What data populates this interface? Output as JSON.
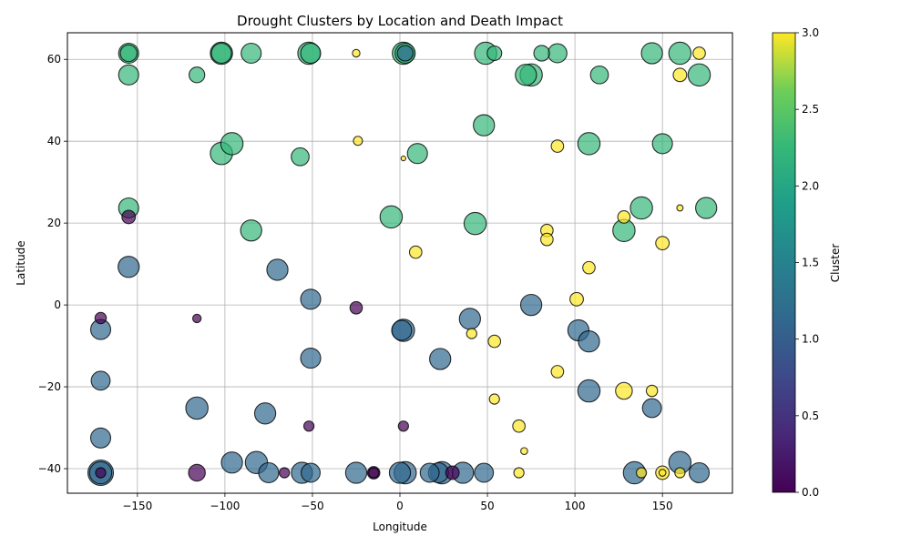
{
  "chart_data": {
    "type": "scatter",
    "title": "Drought Clusters by Location and Death Impact",
    "xlabel": "Longitude",
    "ylabel": "Latitude",
    "xlim": [
      -190,
      190
    ],
    "ylim": [
      -46,
      66.5
    ],
    "xticks": [
      -150,
      -100,
      -50,
      0,
      50,
      100,
      150
    ],
    "yticks": [
      -40,
      -20,
      0,
      20,
      40,
      60
    ],
    "grid": true,
    "colorbar": {
      "label": "Cluster",
      "min": 0,
      "max": 3,
      "ticks": [
        0.0,
        0.5,
        1.0,
        1.5,
        2.0,
        2.5,
        3.0
      ],
      "colormap": "viridis"
    },
    "cluster_colors": {
      "0": "#440154",
      "1": "#31688e",
      "2": "#35b779",
      "3": "#fde725"
    },
    "point_alpha": 0.7,
    "size_scale": "marker radius grows with death impact (relative 0-1)",
    "points": [
      {
        "lon": -171,
        "lat": -41,
        "cluster": 1,
        "size": 1.0
      },
      {
        "lon": -171,
        "lat": -41,
        "cluster": 1,
        "size": 0.85
      },
      {
        "lon": -171,
        "lat": -41,
        "cluster": 0,
        "size": 0.3
      },
      {
        "lon": -171,
        "lat": -32.5,
        "cluster": 1,
        "size": 0.75
      },
      {
        "lon": -171,
        "lat": -18.5,
        "cluster": 1,
        "size": 0.7
      },
      {
        "lon": -171,
        "lat": -6,
        "cluster": 1,
        "size": 0.75
      },
      {
        "lon": -171,
        "lat": -3.2,
        "cluster": 0,
        "size": 0.35
      },
      {
        "lon": -155,
        "lat": 9.3,
        "cluster": 1,
        "size": 0.8
      },
      {
        "lon": -155,
        "lat": 21.5,
        "cluster": 0,
        "size": 0.45
      },
      {
        "lon": -155,
        "lat": 23.7,
        "cluster": 2,
        "size": 0.75
      },
      {
        "lon": -155,
        "lat": 56.2,
        "cluster": 2,
        "size": 0.75
      },
      {
        "lon": -155,
        "lat": 61.5,
        "cluster": 2,
        "size": 0.75
      },
      {
        "lon": -155,
        "lat": 61.5,
        "cluster": 2,
        "size": 0.6
      },
      {
        "lon": -116,
        "lat": 56.2,
        "cluster": 2,
        "size": 0.55
      },
      {
        "lon": -116,
        "lat": -3.3,
        "cluster": 0,
        "size": 0.22
      },
      {
        "lon": -116,
        "lat": -25.2,
        "cluster": 1,
        "size": 0.85
      },
      {
        "lon": -116,
        "lat": -41,
        "cluster": 0,
        "size": 0.6
      },
      {
        "lon": -102,
        "lat": 61.5,
        "cluster": 2,
        "size": 0.85
      },
      {
        "lon": -102,
        "lat": 61.5,
        "cluster": 2,
        "size": 0.75
      },
      {
        "lon": -102,
        "lat": 37,
        "cluster": 2,
        "size": 0.85
      },
      {
        "lon": -96,
        "lat": 39.4,
        "cluster": 2,
        "size": 0.85
      },
      {
        "lon": -96,
        "lat": -38.5,
        "cluster": 1,
        "size": 0.8
      },
      {
        "lon": -85,
        "lat": 61.5,
        "cluster": 2,
        "size": 0.75
      },
      {
        "lon": -85,
        "lat": 18.2,
        "cluster": 2,
        "size": 0.8
      },
      {
        "lon": -82,
        "lat": -38.5,
        "cluster": 1,
        "size": 0.85
      },
      {
        "lon": -77,
        "lat": -26.5,
        "cluster": 1,
        "size": 0.8
      },
      {
        "lon": -75,
        "lat": -41,
        "cluster": 1,
        "size": 0.75
      },
      {
        "lon": -70,
        "lat": 8.6,
        "cluster": 1,
        "size": 0.8
      },
      {
        "lon": -66,
        "lat": -41,
        "cluster": 0,
        "size": 0.3
      },
      {
        "lon": -57,
        "lat": 36.2,
        "cluster": 2,
        "size": 0.65
      },
      {
        "lon": -56,
        "lat": -41,
        "cluster": 1,
        "size": 0.8
      },
      {
        "lon": -52,
        "lat": 61.5,
        "cluster": 2,
        "size": 0.85
      },
      {
        "lon": -51,
        "lat": 61.5,
        "cluster": 2,
        "size": 0.75
      },
      {
        "lon": -51,
        "lat": 1.4,
        "cluster": 1,
        "size": 0.75
      },
      {
        "lon": -51,
        "lat": -13,
        "cluster": 1,
        "size": 0.75
      },
      {
        "lon": -52,
        "lat": -29.6,
        "cluster": 0,
        "size": 0.3
      },
      {
        "lon": -51,
        "lat": -41,
        "cluster": 1,
        "size": 0.7
      },
      {
        "lon": -25,
        "lat": 61.5,
        "cluster": 3,
        "size": 0.18
      },
      {
        "lon": -24,
        "lat": 40.1,
        "cluster": 3,
        "size": 0.25
      },
      {
        "lon": -25,
        "lat": -0.7,
        "cluster": 0,
        "size": 0.4
      },
      {
        "lon": -25,
        "lat": -41,
        "cluster": 1,
        "size": 0.8
      },
      {
        "lon": -15,
        "lat": -41,
        "cluster": 0,
        "size": 0.4
      },
      {
        "lon": -15,
        "lat": -41,
        "cluster": 0,
        "size": 0.3
      },
      {
        "lon": -5,
        "lat": 21.5,
        "cluster": 2,
        "size": 0.85
      },
      {
        "lon": 1,
        "lat": -6.2,
        "cluster": 1,
        "size": 0.75
      },
      {
        "lon": 2,
        "lat": -6.2,
        "cluster": 1,
        "size": 0.85
      },
      {
        "lon": 0,
        "lat": -41,
        "cluster": 1,
        "size": 0.8
      },
      {
        "lon": 2,
        "lat": 61.5,
        "cluster": 2,
        "size": 0.85
      },
      {
        "lon": 3,
        "lat": 61.5,
        "cluster": 2,
        "size": 0.75
      },
      {
        "lon": 3,
        "lat": 61.5,
        "cluster": 1,
        "size": 0.55
      },
      {
        "lon": 2,
        "lat": 35.8,
        "cluster": 3,
        "size": 0.05
      },
      {
        "lon": 2,
        "lat": -29.6,
        "cluster": 0,
        "size": 0.3
      },
      {
        "lon": 3,
        "lat": -41,
        "cluster": 1,
        "size": 0.85
      },
      {
        "lon": 9,
        "lat": 12.9,
        "cluster": 3,
        "size": 0.4
      },
      {
        "lon": 10,
        "lat": 37,
        "cluster": 2,
        "size": 0.75
      },
      {
        "lon": 17,
        "lat": -41,
        "cluster": 1,
        "size": 0.7
      },
      {
        "lon": 23,
        "lat": -13.2,
        "cluster": 1,
        "size": 0.8
      },
      {
        "lon": 22,
        "lat": -41,
        "cluster": 1,
        "size": 0.75
      },
      {
        "lon": 24,
        "lat": -41,
        "cluster": 1,
        "size": 0.85
      },
      {
        "lon": 30,
        "lat": -41,
        "cluster": 0,
        "size": 0.45
      },
      {
        "lon": 36,
        "lat": -41,
        "cluster": 1,
        "size": 0.8
      },
      {
        "lon": 40,
        "lat": -3.4,
        "cluster": 1,
        "size": 0.8
      },
      {
        "lon": 41,
        "lat": -7,
        "cluster": 3,
        "size": 0.3
      },
      {
        "lon": 43,
        "lat": 19.9,
        "cluster": 2,
        "size": 0.85
      },
      {
        "lon": 48,
        "lat": 43.9,
        "cluster": 2,
        "size": 0.8
      },
      {
        "lon": 49,
        "lat": 61.5,
        "cluster": 2,
        "size": 0.85
      },
      {
        "lon": 54,
        "lat": 61.5,
        "cluster": 2,
        "size": 0.5
      },
      {
        "lon": 48,
        "lat": -41,
        "cluster": 1,
        "size": 0.7
      },
      {
        "lon": 54,
        "lat": -8.9,
        "cluster": 3,
        "size": 0.4
      },
      {
        "lon": 54,
        "lat": -23,
        "cluster": 3,
        "size": 0.3
      },
      {
        "lon": 68,
        "lat": -29.6,
        "cluster": 3,
        "size": 0.4
      },
      {
        "lon": 68,
        "lat": -41,
        "cluster": 3,
        "size": 0.3
      },
      {
        "lon": 71,
        "lat": -35.7,
        "cluster": 3,
        "size": 0.15
      },
      {
        "lon": 72,
        "lat": 56.2,
        "cluster": 2,
        "size": 0.8
      },
      {
        "lon": 75,
        "lat": 56.2,
        "cluster": 2,
        "size": 0.85
      },
      {
        "lon": 75,
        "lat": 0,
        "cluster": 1,
        "size": 0.8
      },
      {
        "lon": 81,
        "lat": 61.5,
        "cluster": 2,
        "size": 0.55
      },
      {
        "lon": 84,
        "lat": 18.2,
        "cluster": 3,
        "size": 0.4
      },
      {
        "lon": 84,
        "lat": 16,
        "cluster": 3,
        "size": 0.4
      },
      {
        "lon": 90,
        "lat": 61.5,
        "cluster": 2,
        "size": 0.7
      },
      {
        "lon": 90,
        "lat": 38.8,
        "cluster": 3,
        "size": 0.4
      },
      {
        "lon": 90,
        "lat": -16.3,
        "cluster": 3,
        "size": 0.4
      },
      {
        "lon": 101,
        "lat": 1.4,
        "cluster": 3,
        "size": 0.45
      },
      {
        "lon": 102,
        "lat": -6.2,
        "cluster": 1,
        "size": 0.8
      },
      {
        "lon": 108,
        "lat": 39.4,
        "cluster": 2,
        "size": 0.85
      },
      {
        "lon": 108,
        "lat": 9.1,
        "cluster": 3,
        "size": 0.4
      },
      {
        "lon": 108,
        "lat": -8.9,
        "cluster": 1,
        "size": 0.8
      },
      {
        "lon": 108,
        "lat": -21,
        "cluster": 1,
        "size": 0.85
      },
      {
        "lon": 114,
        "lat": 56.2,
        "cluster": 2,
        "size": 0.65
      },
      {
        "lon": 128,
        "lat": 21.5,
        "cluster": 3,
        "size": 0.4
      },
      {
        "lon": 128,
        "lat": 18.2,
        "cluster": 2,
        "size": 0.85
      },
      {
        "lon": 128,
        "lat": -21,
        "cluster": 3,
        "size": 0.6
      },
      {
        "lon": 134,
        "lat": -41,
        "cluster": 1,
        "size": 0.85
      },
      {
        "lon": 138,
        "lat": 23.7,
        "cluster": 2,
        "size": 0.85
      },
      {
        "lon": 138,
        "lat": -41,
        "cluster": 3,
        "size": 0.3
      },
      {
        "lon": 144,
        "lat": 61.5,
        "cluster": 2,
        "size": 0.8
      },
      {
        "lon": 144,
        "lat": -21,
        "cluster": 3,
        "size": 0.35
      },
      {
        "lon": 144,
        "lat": -25.2,
        "cluster": 1,
        "size": 0.7
      },
      {
        "lon": 150,
        "lat": 39.4,
        "cluster": 2,
        "size": 0.75
      },
      {
        "lon": 150,
        "lat": 15.1,
        "cluster": 3,
        "size": 0.45
      },
      {
        "lon": 150,
        "lat": -41,
        "cluster": 3,
        "size": 0.45
      },
      {
        "lon": 150,
        "lat": -41,
        "cluster": 3,
        "size": 0.15
      },
      {
        "lon": 160,
        "lat": 61.5,
        "cluster": 2,
        "size": 0.85
      },
      {
        "lon": 160,
        "lat": 56.2,
        "cluster": 3,
        "size": 0.45
      },
      {
        "lon": 160,
        "lat": 23.7,
        "cluster": 3,
        "size": 0.12
      },
      {
        "lon": 160,
        "lat": -38.5,
        "cluster": 1,
        "size": 0.85
      },
      {
        "lon": 160,
        "lat": -41,
        "cluster": 3,
        "size": 0.3
      },
      {
        "lon": 171,
        "lat": 61.5,
        "cluster": 3,
        "size": 0.4
      },
      {
        "lon": 171,
        "lat": 56.2,
        "cluster": 2,
        "size": 0.85
      },
      {
        "lon": 171,
        "lat": -41,
        "cluster": 1,
        "size": 0.75
      },
      {
        "lon": 175,
        "lat": 23.7,
        "cluster": 2,
        "size": 0.8
      }
    ]
  }
}
